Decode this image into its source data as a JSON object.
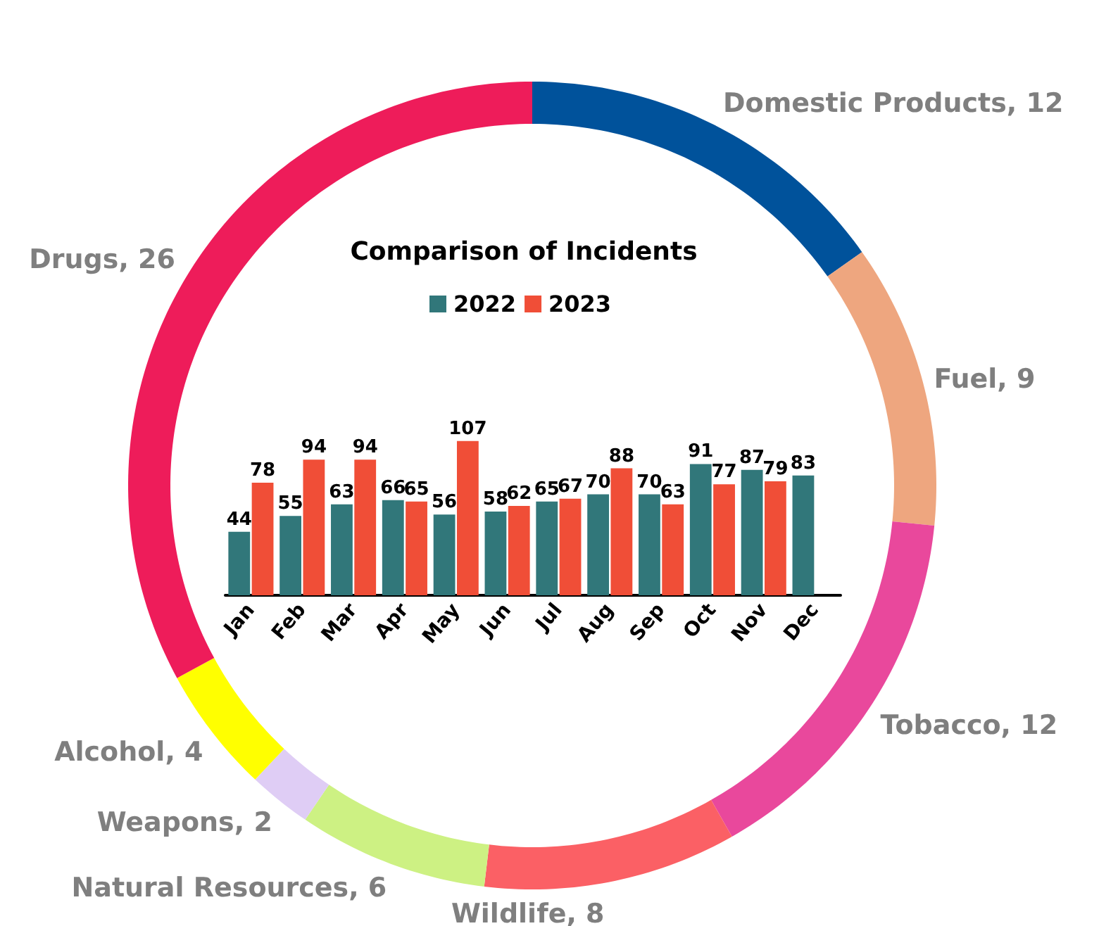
{
  "chart_data": [
    {
      "type": "donut",
      "categories": [
        "Domestic Products",
        "Fuel",
        "Tobacco",
        "Wildlife",
        "Natural Resources",
        "Weapons",
        "Alcohol",
        "Drugs"
      ],
      "values": [
        12,
        9,
        12,
        8,
        6,
        2,
        4,
        26
      ],
      "value_labels": [
        ", 12",
        ", 9",
        ", 12",
        ", 8",
        ", 6",
        ", 2",
        ", 4",
        ", 26"
      ],
      "colors": [
        "#00529b",
        "#eea67f",
        "#e9489c",
        "#fb6065",
        "#cdf183",
        "#dfcdf5",
        "#ffff00",
        "#ee1c5a"
      ],
      "legend": false
    },
    {
      "type": "bar",
      "title": "Comparison of Incidents",
      "categories": [
        "Jan",
        "Feb",
        "Mar",
        "Apr",
        "May",
        "Jun",
        "Jul",
        "Aug",
        "Sep",
        "Oct",
        "Nov",
        "Dec"
      ],
      "series": [
        {
          "name": "2022",
          "color": "#31777a",
          "values": [
            44,
            55,
            63,
            66,
            56,
            58,
            65,
            70,
            70,
            91,
            87,
            83
          ]
        },
        {
          "name": "2023",
          "color": "#f04e37",
          "values": [
            78,
            94,
            94,
            65,
            107,
            62,
            67,
            88,
            63,
            77,
            79,
            null
          ]
        }
      ],
      "data_labels": true,
      "legend": "top",
      "tick_labels": "x"
    }
  ]
}
